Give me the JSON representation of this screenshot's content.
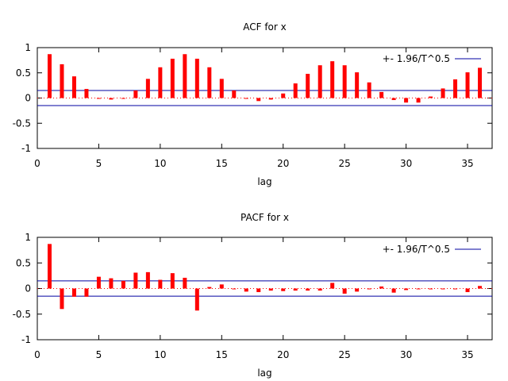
{
  "colors": {
    "bars": "#ff0000",
    "bands": "#0000a0",
    "zero_line": "#ff0000",
    "frame": "#000000"
  },
  "chart_data": [
    {
      "type": "bar",
      "title": "ACF for x",
      "xlabel": "lag",
      "ylabel": "",
      "xlim": [
        0,
        37
      ],
      "ylim": [
        -1,
        1
      ],
      "xticks": [
        0,
        5,
        10,
        15,
        20,
        25,
        30,
        35
      ],
      "yticks": [
        1,
        0.5,
        0,
        -0.5,
        -1
      ],
      "ytick_labels": [
        "1",
        "0.5",
        "0",
        "-0.5",
        "-1"
      ],
      "lags": [
        1,
        2,
        3,
        4,
        5,
        6,
        7,
        8,
        9,
        10,
        11,
        12,
        13,
        14,
        15,
        16,
        17,
        18,
        19,
        20,
        21,
        22,
        23,
        24,
        25,
        26,
        27,
        28,
        29,
        30,
        31,
        32,
        33,
        34,
        35,
        36
      ],
      "values": [
        0.87,
        0.67,
        0.43,
        0.18,
        -0.01,
        -0.03,
        0.0,
        0.15,
        0.38,
        0.61,
        0.78,
        0.87,
        0.78,
        0.61,
        0.38,
        0.15,
        -0.01,
        -0.06,
        -0.03,
        0.09,
        0.29,
        0.48,
        0.65,
        0.73,
        0.65,
        0.51,
        0.31,
        0.12,
        -0.04,
        -0.09,
        -0.09,
        0.03,
        0.19,
        0.37,
        0.51,
        0.6
      ],
      "confidence_band": 0.15,
      "legend": {
        "label": "+- 1.96/T^0.5",
        "position": "top-right"
      }
    },
    {
      "type": "bar",
      "title": "PACF for x",
      "xlabel": "lag",
      "ylabel": "",
      "xlim": [
        0,
        37
      ],
      "ylim": [
        -1,
        1
      ],
      "xticks": [
        0,
        5,
        10,
        15,
        20,
        25,
        30,
        35
      ],
      "yticks": [
        1,
        0.5,
        0,
        -0.5,
        -1
      ],
      "ytick_labels": [
        "1",
        "0.5",
        "0",
        "-0.5",
        "-1"
      ],
      "lags": [
        1,
        2,
        3,
        4,
        5,
        6,
        7,
        8,
        9,
        10,
        11,
        12,
        13,
        14,
        15,
        16,
        17,
        18,
        19,
        20,
        21,
        22,
        23,
        24,
        25,
        26,
        27,
        28,
        29,
        30,
        31,
        32,
        33,
        34,
        35,
        36
      ],
      "values": [
        0.87,
        -0.4,
        -0.16,
        -0.16,
        0.23,
        0.2,
        0.15,
        0.31,
        0.32,
        0.17,
        0.3,
        0.21,
        -0.43,
        0.03,
        0.08,
        0.0,
        -0.06,
        -0.07,
        -0.04,
        -0.05,
        -0.04,
        -0.04,
        -0.04,
        0.11,
        -0.1,
        -0.06,
        -0.01,
        0.04,
        -0.08,
        -0.03,
        -0.01,
        -0.01,
        -0.01,
        -0.01,
        -0.07,
        0.05
      ],
      "confidence_band": 0.15,
      "legend": {
        "label": "+- 1.96/T^0.5",
        "position": "top-right"
      }
    }
  ]
}
